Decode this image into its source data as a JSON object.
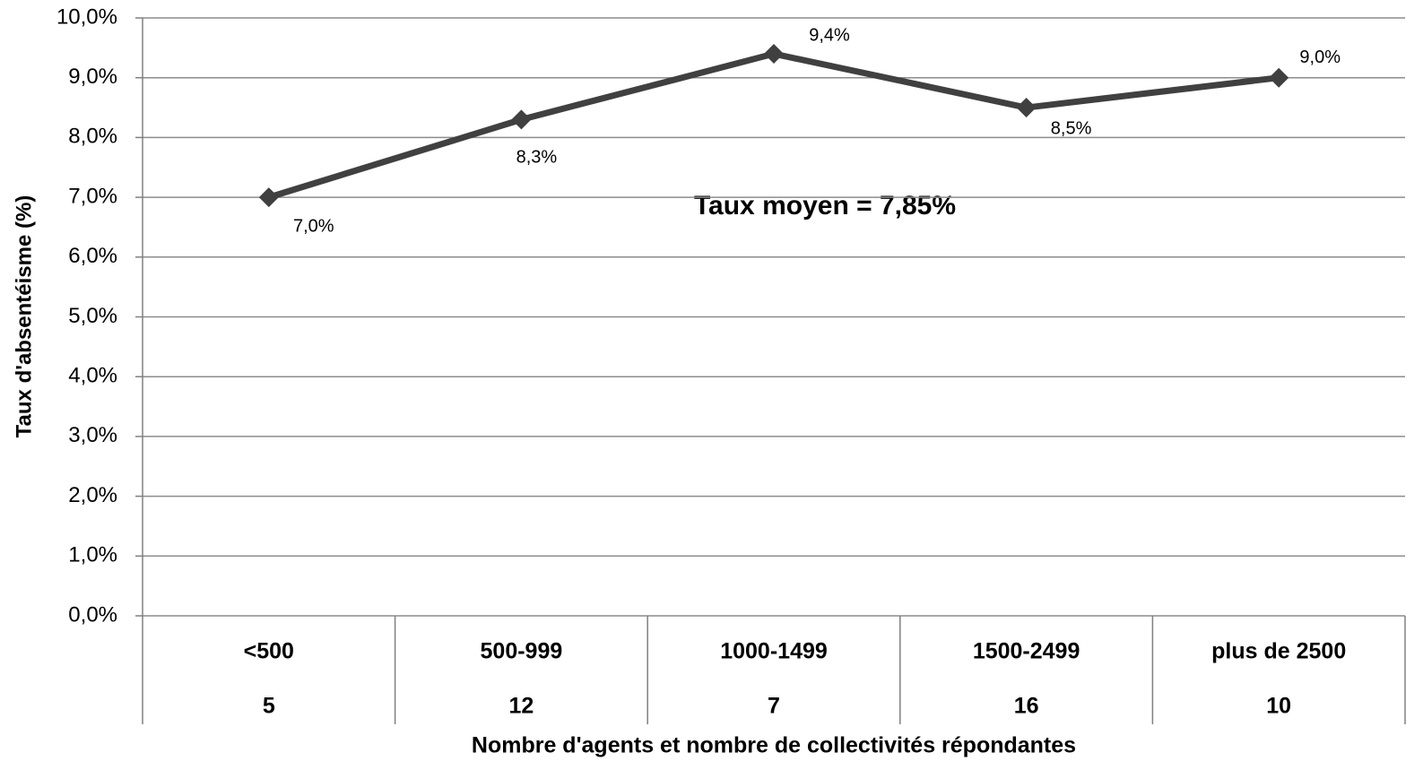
{
  "chart_data": {
    "type": "line",
    "y_label": "Taux d'absentéisme (%)",
    "x_label": "Nombre d'agents et nombre de collectivités répondantes",
    "annotation": "Taux moyen = 7,85%",
    "categories": [
      "<500",
      "500-999",
      "1000-1499",
      "1500-2499",
      "plus de 2500"
    ],
    "category_counts": [
      5,
      12,
      7,
      16,
      10
    ],
    "values": [
      7.0,
      8.3,
      9.4,
      8.5,
      9.0
    ],
    "value_labels": [
      "7,0%",
      "8,3%",
      "9,4%",
      "8,5%",
      "9,0%"
    ],
    "color": "#404040",
    "ylim": [
      0,
      10
    ],
    "yticks": [
      {
        "value": 0,
        "label": "0,0%"
      },
      {
        "value": 1,
        "label": "1,0%"
      },
      {
        "value": 2,
        "label": "2,0%"
      },
      {
        "value": 3,
        "label": "3,0%"
      },
      {
        "value": 4,
        "label": "4,0%"
      },
      {
        "value": 5,
        "label": "5,0%"
      },
      {
        "value": 6,
        "label": "6,0%"
      },
      {
        "value": 7,
        "label": "7,0%"
      },
      {
        "value": 8,
        "label": "8,0%"
      },
      {
        "value": 9,
        "label": "9,0%"
      },
      {
        "value": 10,
        "label": "10,0%"
      }
    ],
    "grid": true
  }
}
